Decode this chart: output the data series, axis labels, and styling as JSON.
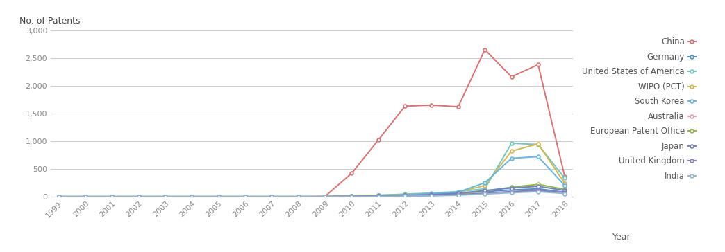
{
  "years": [
    1999,
    2000,
    2001,
    2002,
    2003,
    2004,
    2005,
    2006,
    2007,
    2008,
    2009,
    2010,
    2011,
    2012,
    2013,
    2014,
    2015,
    2016,
    2017,
    2018
  ],
  "series": {
    "China": [
      0,
      0,
      0,
      0,
      0,
      0,
      0,
      0,
      0,
      0,
      5,
      420,
      1020,
      1630,
      1650,
      1620,
      2650,
      2160,
      2380,
      360
    ],
    "Germany": [
      0,
      0,
      0,
      0,
      0,
      0,
      0,
      0,
      0,
      0,
      0,
      10,
      20,
      30,
      40,
      60,
      90,
      120,
      140,
      80
    ],
    "United States of America": [
      0,
      0,
      0,
      0,
      0,
      0,
      0,
      0,
      0,
      0,
      0,
      12,
      25,
      45,
      65,
      90,
      140,
      960,
      940,
      330
    ],
    "WIPO (PCT)": [
      0,
      0,
      0,
      0,
      0,
      0,
      0,
      0,
      0,
      0,
      0,
      15,
      25,
      40,
      55,
      80,
      200,
      820,
      950,
      240
    ],
    "South Korea": [
      0,
      0,
      0,
      0,
      0,
      0,
      0,
      0,
      0,
      0,
      0,
      10,
      18,
      35,
      55,
      80,
      250,
      690,
      720,
      200
    ],
    "Australia": [
      0,
      0,
      0,
      0,
      0,
      0,
      0,
      0,
      0,
      0,
      0,
      5,
      8,
      15,
      22,
      35,
      60,
      90,
      110,
      70
    ],
    "European Patent Office": [
      0,
      0,
      0,
      0,
      0,
      0,
      0,
      0,
      0,
      0,
      0,
      5,
      10,
      18,
      30,
      50,
      100,
      170,
      220,
      130
    ],
    "Japan": [
      0,
      0,
      0,
      0,
      0,
      0,
      0,
      0,
      0,
      0,
      0,
      5,
      10,
      18,
      35,
      60,
      110,
      155,
      185,
      110
    ],
    "United Kingdom": [
      0,
      0,
      0,
      0,
      0,
      0,
      0,
      0,
      0,
      0,
      0,
      3,
      7,
      12,
      20,
      35,
      60,
      90,
      110,
      70
    ],
    "India": [
      0,
      0,
      0,
      0,
      0,
      0,
      0,
      0,
      0,
      0,
      0,
      2,
      4,
      8,
      14,
      25,
      45,
      70,
      88,
      55
    ]
  },
  "colors": {
    "China": "#e07070",
    "Germany": "#4a90d0",
    "United States of America": "#70c8c0",
    "WIPO (PCT)": "#d4b84a",
    "South Korea": "#60b8e8",
    "Australia": "#e8a0b0",
    "European Patent Office": "#90b840",
    "Japan": "#7080c8",
    "United Kingdom": "#8878c0",
    "India": "#90b8d0"
  },
  "legend_order": [
    "China",
    "Germany",
    "United States of America",
    "WIPO (PCT)",
    "South Korea",
    "Australia",
    "European Patent Office",
    "Japan",
    "United Kingdom",
    "India"
  ],
  "ylabel": "No. of Patents",
  "xlabel": "Year",
  "ylim": [
    0,
    3000
  ],
  "yticks": [
    0,
    500,
    1000,
    1500,
    2000,
    2500,
    3000
  ],
  "background_color": "#ffffff",
  "grid_color": "#cccccc",
  "marker": "o",
  "marker_size": 3.5,
  "linewidth": 1.4
}
